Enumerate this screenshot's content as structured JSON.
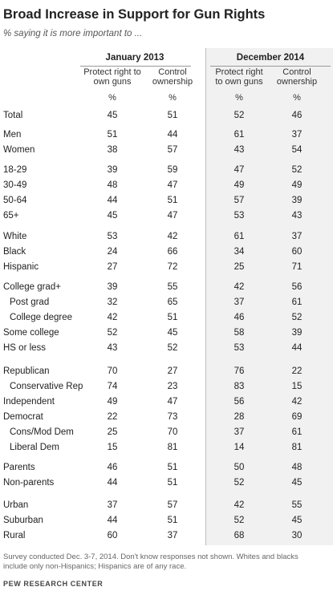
{
  "chart_data": {
    "type": "table",
    "title": "Broad Increase in Support for Gun Rights",
    "subtitle": "% saying it is more important to ...",
    "periods": [
      "January 2013",
      "December 2014"
    ],
    "columns": [
      "Protect right to own guns",
      "Control ownership"
    ],
    "column_headers": [
      {
        "line1": "Protect right to",
        "line2": "own guns"
      },
      {
        "line1": "Control",
        "line2": "ownership"
      },
      {
        "line1": "Protect right",
        "line2": "to own guns"
      },
      {
        "line1": "Control",
        "line2": "ownership"
      }
    ],
    "unit_label": "%",
    "rows": [
      {
        "label": "Total",
        "values": [
          45,
          51,
          52,
          46
        ],
        "indent": false
      },
      {
        "label": "Men",
        "values": [
          51,
          44,
          61,
          37
        ],
        "indent": false
      },
      {
        "label": "Women",
        "values": [
          38,
          57,
          43,
          54
        ],
        "indent": false
      },
      {
        "label": "18-29",
        "values": [
          39,
          59,
          47,
          52
        ],
        "indent": false
      },
      {
        "label": "30-49",
        "values": [
          48,
          47,
          49,
          49
        ],
        "indent": false
      },
      {
        "label": "50-64",
        "values": [
          44,
          51,
          57,
          39
        ],
        "indent": false
      },
      {
        "label": "65+",
        "values": [
          45,
          47,
          53,
          43
        ],
        "indent": false
      },
      {
        "label": "White",
        "values": [
          53,
          42,
          61,
          37
        ],
        "indent": false
      },
      {
        "label": "Black",
        "values": [
          24,
          66,
          34,
          60
        ],
        "indent": false
      },
      {
        "label": "Hispanic",
        "values": [
          27,
          72,
          25,
          71
        ],
        "indent": false
      },
      {
        "label": "College grad+",
        "values": [
          39,
          55,
          42,
          56
        ],
        "indent": false
      },
      {
        "label": "Post grad",
        "values": [
          32,
          65,
          37,
          61
        ],
        "indent": true
      },
      {
        "label": "College degree",
        "values": [
          42,
          51,
          46,
          52
        ],
        "indent": true
      },
      {
        "label": "Some college",
        "values": [
          52,
          45,
          58,
          39
        ],
        "indent": false
      },
      {
        "label": "HS or less",
        "values": [
          43,
          52,
          53,
          44
        ],
        "indent": false
      },
      {
        "label": "Republican",
        "values": [
          70,
          27,
          76,
          22
        ],
        "indent": false
      },
      {
        "label": "Conservative Rep",
        "values": [
          74,
          23,
          83,
          15
        ],
        "indent": true
      },
      {
        "label": "Independent",
        "values": [
          49,
          47,
          56,
          42
        ],
        "indent": false
      },
      {
        "label": "Democrat",
        "values": [
          22,
          73,
          28,
          69
        ],
        "indent": false
      },
      {
        "label": "Cons/Mod Dem",
        "values": [
          25,
          70,
          37,
          61
        ],
        "indent": true
      },
      {
        "label": "Liberal Dem",
        "values": [
          15,
          81,
          14,
          81
        ],
        "indent": true
      },
      {
        "label": "Parents",
        "values": [
          46,
          51,
          50,
          48
        ],
        "indent": false
      },
      {
        "label": "Non-parents",
        "values": [
          44,
          51,
          52,
          45
        ],
        "indent": false
      },
      {
        "label": "Urban",
        "values": [
          37,
          57,
          42,
          55
        ],
        "indent": false
      },
      {
        "label": "Suburban",
        "values": [
          44,
          51,
          52,
          45
        ],
        "indent": false
      },
      {
        "label": "Rural",
        "values": [
          60,
          37,
          68,
          30
        ],
        "indent": false
      }
    ],
    "footnote": "Survey conducted Dec. 3-7, 2014. Don't know responses not shown. Whites and blacks include only non-Hispanics; Hispanics are of any race.",
    "source": "PEW RESEARCH CENTER"
  }
}
